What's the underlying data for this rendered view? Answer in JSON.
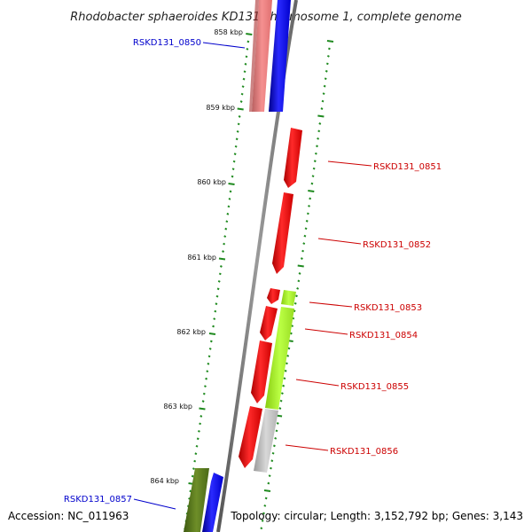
{
  "title": "Rhodobacter sphaeroides KD131 chromosome 1, complete genome",
  "footer": {
    "accession": "Accession: NC_011963",
    "summary": "Topology: circular; Length: 3,152,792 bp; Genes: 3,143"
  },
  "colors": {
    "backbone": "#7a7a7a",
    "tick_dots": "#1f8a1f",
    "label_forward": "#0000cc",
    "label_reverse": "#cc0000",
    "gene_red": "#ff0000",
    "gene_blue": "#0000ff",
    "gene_pink": "#f08080",
    "gene_lime": "#aaff22",
    "gene_gray": "#c0c0c0",
    "gene_olive": "#5a7a1a"
  },
  "kbp_ticks": [
    "858 kbp",
    "859 kbp",
    "860 kbp",
    "861 kbp",
    "862 kbp",
    "863 kbp",
    "864 kbp"
  ],
  "gene_labels": [
    {
      "id": "RSKD131_0850",
      "strand": "forward"
    },
    {
      "id": "RSKD131_0851",
      "strand": "reverse"
    },
    {
      "id": "RSKD131_0852",
      "strand": "reverse"
    },
    {
      "id": "RSKD131_0853",
      "strand": "reverse"
    },
    {
      "id": "RSKD131_0854",
      "strand": "reverse"
    },
    {
      "id": "RSKD131_0855",
      "strand": "reverse"
    },
    {
      "id": "RSKD131_0856",
      "strand": "reverse"
    },
    {
      "id": "RSKD131_0857",
      "strand": "forward"
    }
  ]
}
